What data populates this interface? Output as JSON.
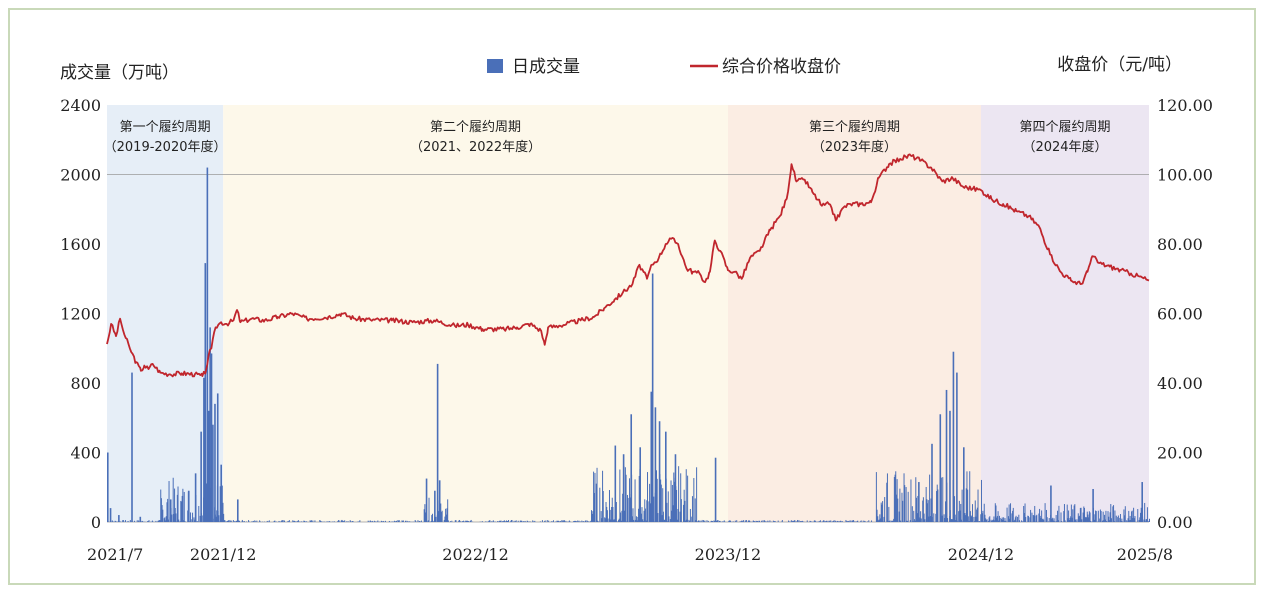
{
  "chart_data": {
    "type": "bar+line",
    "left_axis_title": "成交量（万吨）",
    "right_axis_title": "收盘价（元/吨）",
    "legend": [
      {
        "label": "日成交量",
        "kind": "bar",
        "color": "#4a6fb8"
      },
      {
        "label": "综合价格收盘价",
        "kind": "line",
        "color": "#c0262d"
      }
    ],
    "ylim_left": [
      0,
      2400
    ],
    "ylim_right": [
      0,
      120
    ],
    "yticks_left": [
      "0",
      "400",
      "800",
      "1200",
      "1600",
      "2000",
      "2400"
    ],
    "yticks_right": [
      "0.00",
      "20.00",
      "40.00",
      "60.00",
      "80.00",
      "100.00",
      "120.00"
    ],
    "xlim": [
      "2021-07-16",
      "2025-08-31"
    ],
    "xticks": [
      {
        "label": "2021/7",
        "date": "2021-07-16"
      },
      {
        "label": "2021/12",
        "date": "2021-12-31"
      },
      {
        "label": "2022/12",
        "date": "2022-12-31"
      },
      {
        "label": "2023/12",
        "date": "2023-12-31"
      },
      {
        "label": "2024/12",
        "date": "2024-12-31"
      },
      {
        "label": "2025/8",
        "date": "2025-08-31"
      }
    ],
    "reference_line_left": 2000,
    "periods": [
      {
        "label1": "第一个履约周期",
        "label2": "（2019-2020年度）",
        "start": "2021-07-16",
        "end": "2021-12-31",
        "color": "#e6eef7"
      },
      {
        "label1": "第二个履约周期",
        "label2": "（2021、2022年度）",
        "start": "2021-12-31",
        "end": "2023-12-31",
        "color": "#fdf8ea"
      },
      {
        "label1": "第三个履约周期",
        "label2": "（2023年度）",
        "start": "2023-12-31",
        "end": "2024-12-31",
        "color": "#fbede3"
      },
      {
        "label1": "第四个履约周期",
        "label2": "（2024年度）",
        "start": "2024-12-31",
        "end": "2025-08-31",
        "color": "#ece6f2"
      }
    ],
    "series": [
      {
        "name": "综合价格收盘价",
        "axis": "right",
        "points": [
          [
            "2021-07-16",
            51.2
          ],
          [
            "2021-07-22",
            57.0
          ],
          [
            "2021-07-29",
            53.5
          ],
          [
            "2021-08-04",
            58.5
          ],
          [
            "2021-08-10",
            54.0
          ],
          [
            "2021-08-18",
            50.0
          ],
          [
            "2021-08-27",
            46.0
          ],
          [
            "2021-09-03",
            43.5
          ],
          [
            "2021-09-08",
            45.0
          ],
          [
            "2021-09-14",
            44.0
          ],
          [
            "2021-09-20",
            45.5
          ],
          [
            "2021-10-01",
            43.0
          ],
          [
            "2021-10-15",
            42.5
          ],
          [
            "2021-11-01",
            42.8
          ],
          [
            "2021-11-20",
            42.5
          ],
          [
            "2021-12-01",
            42.0
          ],
          [
            "2021-12-06",
            43.5
          ],
          [
            "2021-12-10",
            48.0
          ],
          [
            "2021-12-14",
            50.0
          ],
          [
            "2021-12-20",
            56.0
          ],
          [
            "2021-12-28",
            57.5
          ],
          [
            "2022-01-05",
            57.0
          ],
          [
            "2022-01-15",
            58.0
          ],
          [
            "2022-01-20",
            61.0
          ],
          [
            "2022-01-25",
            57.5
          ],
          [
            "2022-02-10",
            58.5
          ],
          [
            "2022-03-01",
            58.0
          ],
          [
            "2022-03-20",
            59.0
          ],
          [
            "2022-04-10",
            60.0
          ],
          [
            "2022-05-01",
            58.5
          ],
          [
            "2022-06-01",
            59.0
          ],
          [
            "2022-06-20",
            60.0
          ],
          [
            "2022-07-10",
            58.5
          ],
          [
            "2022-08-01",
            58.2
          ],
          [
            "2022-09-01",
            58.0
          ],
          [
            "2022-10-01",
            57.5
          ],
          [
            "2022-11-01",
            58.0
          ],
          [
            "2022-12-01",
            56.5
          ],
          [
            "2022-12-20",
            56.8
          ],
          [
            "2023-01-10",
            55.5
          ],
          [
            "2023-02-10",
            55.5
          ],
          [
            "2023-03-01",
            56.0
          ],
          [
            "2023-03-20",
            57.0
          ],
          [
            "2023-04-05",
            55.0
          ],
          [
            "2023-04-10",
            51.0
          ],
          [
            "2023-04-15",
            56.0
          ],
          [
            "2023-05-01",
            56.5
          ],
          [
            "2023-06-01",
            58.0
          ],
          [
            "2023-06-20",
            59.0
          ],
          [
            "2023-07-05",
            61.5
          ],
          [
            "2023-07-20",
            64.0
          ],
          [
            "2023-08-01",
            66.0
          ],
          [
            "2023-08-15",
            68.5
          ],
          [
            "2023-08-25",
            74.0
          ],
          [
            "2023-09-05",
            70.0
          ],
          [
            "2023-09-12",
            74.0
          ],
          [
            "2023-09-22",
            76.0
          ],
          [
            "2023-10-02",
            80.0
          ],
          [
            "2023-10-10",
            81.5
          ],
          [
            "2023-10-20",
            80.0
          ],
          [
            "2023-11-01",
            73.0
          ],
          [
            "2023-11-10",
            72.0
          ],
          [
            "2023-11-20",
            71.5
          ],
          [
            "2023-11-28",
            69.0
          ],
          [
            "2023-12-05",
            72.0
          ],
          [
            "2023-12-12",
            81.0
          ],
          [
            "2023-12-20",
            78.0
          ],
          [
            "2023-12-31",
            72.5
          ],
          [
            "2024-01-10",
            72.0
          ],
          [
            "2024-01-20",
            70.0
          ],
          [
            "2024-02-01",
            76.0
          ],
          [
            "2024-02-15",
            78.0
          ],
          [
            "2024-03-01",
            84.0
          ],
          [
            "2024-03-15",
            88.0
          ],
          [
            "2024-03-25",
            93.0
          ],
          [
            "2024-04-01",
            103.0
          ],
          [
            "2024-04-08",
            98.0
          ],
          [
            "2024-04-20",
            98.5
          ],
          [
            "2024-05-01",
            95.0
          ],
          [
            "2024-05-15",
            91.0
          ],
          [
            "2024-05-25",
            91.5
          ],
          [
            "2024-06-05",
            87.0
          ],
          [
            "2024-06-15",
            90.5
          ],
          [
            "2024-06-25",
            91.5
          ],
          [
            "2024-07-10",
            91.5
          ],
          [
            "2024-07-25",
            92.0
          ],
          [
            "2024-08-05",
            99.0
          ],
          [
            "2024-08-20",
            103.0
          ],
          [
            "2024-09-05",
            104.5
          ],
          [
            "2024-09-20",
            105.5
          ],
          [
            "2024-10-05",
            104.0
          ],
          [
            "2024-10-20",
            102.0
          ],
          [
            "2024-11-05",
            98.0
          ],
          [
            "2024-11-20",
            99.0
          ],
          [
            "2024-12-05",
            96.5
          ],
          [
            "2024-12-31",
            95.5
          ],
          [
            "2025-01-15",
            93.0
          ],
          [
            "2025-02-01",
            91.5
          ],
          [
            "2025-02-20",
            89.5
          ],
          [
            "2025-03-10",
            88.0
          ],
          [
            "2025-03-25",
            85.0
          ],
          [
            "2025-04-10",
            77.0
          ],
          [
            "2025-04-25",
            72.0
          ],
          [
            "2025-05-10",
            69.5
          ],
          [
            "2025-05-25",
            68.5
          ],
          [
            "2025-06-03",
            72.0
          ],
          [
            "2025-06-10",
            76.5
          ],
          [
            "2025-06-20",
            74.5
          ],
          [
            "2025-07-05",
            73.5
          ],
          [
            "2025-07-20",
            72.5
          ],
          [
            "2025-08-05",
            71.5
          ],
          [
            "2025-08-31",
            69.5
          ]
        ]
      },
      {
        "name": "日成交量",
        "axis": "left",
        "spikes": [
          [
            "2021-07-16",
            400
          ],
          [
            "2021-07-20",
            80
          ],
          [
            "2021-08-01",
            40
          ],
          [
            "2021-08-20",
            860
          ],
          [
            "2021-09-01",
            30
          ],
          [
            "2021-10-15",
            130
          ],
          [
            "2021-11-01",
            150
          ],
          [
            "2021-11-10",
            180
          ],
          [
            "2021-11-20",
            280
          ],
          [
            "2021-11-28",
            520
          ],
          [
            "2021-12-02",
            830
          ],
          [
            "2021-12-04",
            1490
          ],
          [
            "2021-12-07",
            2040
          ],
          [
            "2021-12-09",
            640
          ],
          [
            "2021-12-11",
            1120
          ],
          [
            "2021-12-13",
            970
          ],
          [
            "2021-12-15",
            560
          ],
          [
            "2021-12-18",
            680
          ],
          [
            "2021-12-22",
            740
          ],
          [
            "2021-12-27",
            330
          ],
          [
            "2022-01-20",
            130
          ],
          [
            "2022-10-20",
            250
          ],
          [
            "2022-11-01",
            180
          ],
          [
            "2022-11-05",
            910
          ],
          [
            "2022-11-08",
            240
          ],
          [
            "2023-07-20",
            440
          ],
          [
            "2023-08-01",
            390
          ],
          [
            "2023-08-12",
            620
          ],
          [
            "2023-08-25",
            430
          ],
          [
            "2023-09-10",
            750
          ],
          [
            "2023-09-12",
            1430
          ],
          [
            "2023-09-16",
            660
          ],
          [
            "2023-09-22",
            580
          ],
          [
            "2023-10-01",
            520
          ],
          [
            "2023-10-15",
            390
          ],
          [
            "2023-12-12",
            370
          ],
          [
            "2024-10-01",
            230
          ],
          [
            "2024-10-20",
            450
          ],
          [
            "2024-11-01",
            620
          ],
          [
            "2024-11-10",
            760
          ],
          [
            "2024-11-15",
            640
          ],
          [
            "2024-11-20",
            980
          ],
          [
            "2024-11-25",
            860
          ],
          [
            "2024-12-05",
            430
          ],
          [
            "2025-04-10",
            210
          ],
          [
            "2025-06-10",
            190
          ],
          [
            "2025-08-20",
            230
          ]
        ],
        "active_windows": [
          {
            "start": "2021-10-01",
            "end": "2021-12-31",
            "peak": 260
          },
          {
            "start": "2022-10-15",
            "end": "2022-11-20",
            "peak": 140
          },
          {
            "start": "2023-06-15",
            "end": "2023-11-15",
            "peak": 330
          },
          {
            "start": "2024-08-01",
            "end": "2024-12-31",
            "peak": 300
          },
          {
            "start": "2025-01-01",
            "end": "2025-08-31",
            "peak": 110
          }
        ]
      }
    ]
  }
}
